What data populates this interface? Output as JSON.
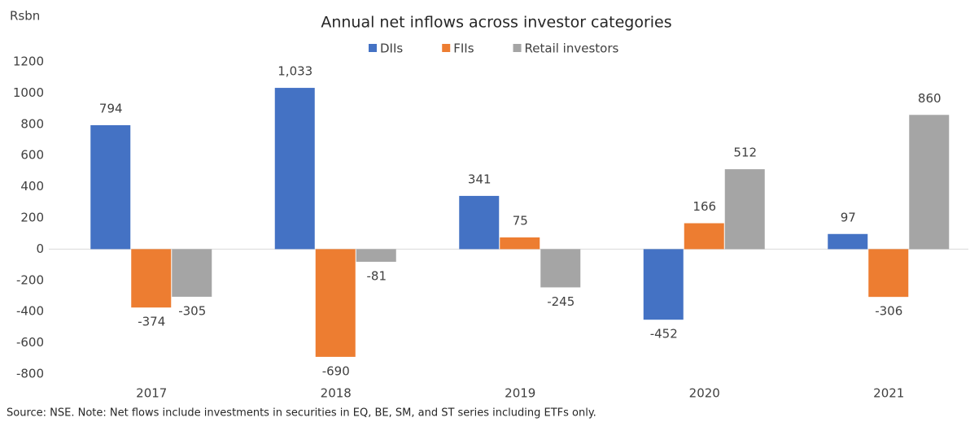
{
  "chart_data": {
    "type": "bar",
    "title": "Annual net inflows across investor categories",
    "y_axis_label": "Rsbn",
    "note": "Source: NSE. Note: Net flows include investments in securities in EQ, BE, SM, and ST series including ETFs only.",
    "categories": [
      "2017",
      "2018",
      "2019",
      "2020",
      "2021"
    ],
    "series": [
      {
        "name": "DIIs",
        "color": "#4472c4",
        "values": [
          794,
          1033,
          341,
          -452,
          97
        ],
        "value_labels": [
          "794",
          "1,033",
          "341",
          "-452",
          "97"
        ]
      },
      {
        "name": "FIIs",
        "color": "#ed7d31",
        "values": [
          -374,
          -690,
          75,
          166,
          -306
        ],
        "value_labels": [
          "-374",
          "-690",
          "75",
          "166",
          "-306"
        ]
      },
      {
        "name": "Retail investors",
        "color": "#a5a5a5",
        "values": [
          -305,
          -81,
          -245,
          512,
          860
        ],
        "value_labels": [
          "-305",
          "-81",
          "-245",
          "512",
          "860"
        ]
      }
    ],
    "ylim": [
      -800,
      1200
    ],
    "yticks": [
      -800,
      -600,
      -400,
      -200,
      0,
      200,
      400,
      600,
      800,
      1000,
      1200
    ],
    "legend": "top",
    "grid": false
  }
}
